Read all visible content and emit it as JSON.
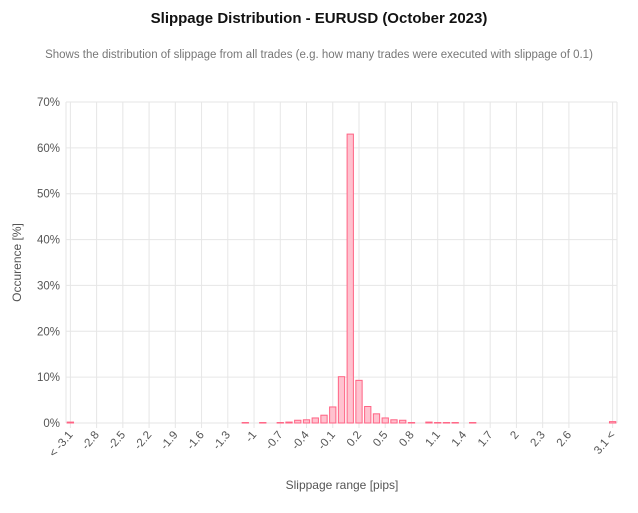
{
  "chart_data": {
    "type": "bar",
    "title": "Slippage Distribution - EURUSD (October 2023)",
    "subtitle": "Shows the distribution of slippage from all trades (e.g. how many trades were executed with slippage of 0.1)",
    "xlabel": "Slippage range [pips]",
    "ylabel": "Occurence [%]",
    "ylim": [
      0,
      70
    ],
    "y_ticks": [
      "0%",
      "10%",
      "20%",
      "30%",
      "40%",
      "50%",
      "60%",
      "70%"
    ],
    "x_tick_labels": [
      "< -3.1",
      "-2.8",
      "-2.5",
      "-2.2",
      "-1.9",
      "-1.6",
      "-1.3",
      "-1",
      "-0.7",
      "-0.4",
      "-0.1",
      "0.2",
      "0.5",
      "0.8",
      "1.1",
      "1.4",
      "1.7",
      "2",
      "2.3",
      "2.6",
      "3.1 <"
    ],
    "grid": true,
    "legend": "none",
    "bar_color": "#ff6384",
    "bar_fill": "#ffc2cf",
    "categories": [
      "< -3.1",
      "-3.0",
      "-2.9",
      "-2.8",
      "-2.7",
      "-2.6",
      "-2.5",
      "-2.4",
      "-2.3",
      "-2.2",
      "-2.1",
      "-2.0",
      "-1.9",
      "-1.8",
      "-1.7",
      "-1.6",
      "-1.5",
      "-1.4",
      "-1.3",
      "-1.2",
      "-1.1",
      "-1.0",
      "-0.9",
      "-0.8",
      "-0.7",
      "-0.6",
      "-0.5",
      "-0.4",
      "-0.3",
      "-0.2",
      "-0.1",
      "0.0",
      "0.1",
      "0.2",
      "0.3",
      "0.4",
      "0.5",
      "0.6",
      "0.7",
      "0.8",
      "0.9",
      "1.0",
      "1.1",
      "1.2",
      "1.3",
      "1.4",
      "1.5",
      "1.6",
      "1.7",
      "1.8",
      "1.9",
      "2.0",
      "2.1",
      "2.2",
      "2.3",
      "2.4",
      "2.5",
      "2.6",
      "2.7",
      "2.8",
      "2.9",
      "3.0",
      "3.1 <"
    ],
    "values": [
      0.2,
      0,
      0,
      0,
      0,
      0,
      0,
      0,
      0,
      0,
      0,
      0,
      0,
      0,
      0,
      0,
      0,
      0,
      0,
      0,
      0.1,
      0,
      0.1,
      0,
      0.1,
      0.2,
      0.6,
      0.7,
      1.1,
      1.7,
      3.5,
      10.1,
      63.0,
      9.3,
      3.6,
      2.0,
      1.1,
      0.7,
      0.6,
      0.1,
      0,
      0.2,
      0.1,
      0.1,
      0.1,
      0,
      0.1,
      0,
      0,
      0,
      0,
      0,
      0,
      0,
      0,
      0,
      0,
      0,
      0,
      0,
      0,
      0,
      0.3
    ]
  }
}
